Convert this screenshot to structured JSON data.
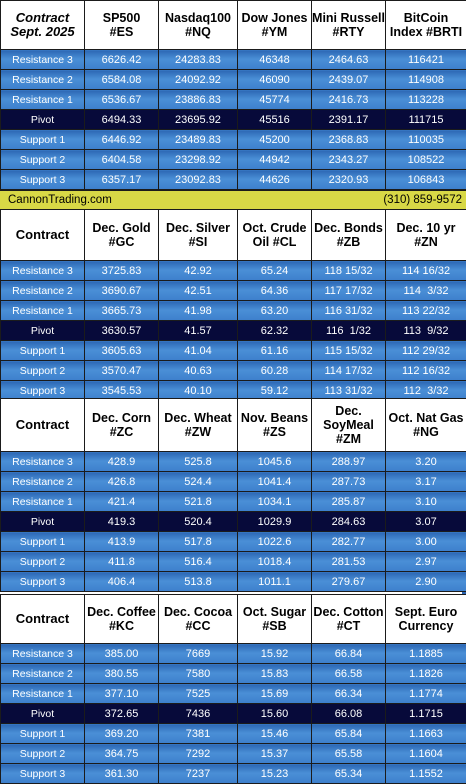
{
  "banner": {
    "site": "CannonTrading.com",
    "phone": "(310) 859-9572"
  },
  "row_labels": [
    "Resistance 3",
    "Resistance 2",
    "Resistance 1",
    "Pivot",
    "Support 1",
    "Support 2",
    "Support 3"
  ],
  "sections": [
    {
      "header": [
        "Contract\nSept. 2025",
        "SP500\n#ES",
        "Nasdaq100\n#NQ",
        "Dow Jones\n#YM",
        "Mini Russell\n#RTY",
        "BitCoin\nIndex #BRTI"
      ],
      "rows": [
        [
          "6626.42",
          "24283.83",
          "46348",
          "2464.63",
          "116421"
        ],
        [
          "6584.08",
          "24092.92",
          "46090",
          "2439.07",
          "114908"
        ],
        [
          "6536.67",
          "23886.83",
          "45774",
          "2416.73",
          "113228"
        ],
        [
          "6494.33",
          "23695.92",
          "45516",
          "2391.17",
          "111715"
        ],
        [
          "6446.92",
          "23489.83",
          "45200",
          "2368.83",
          "110035"
        ],
        [
          "6404.58",
          "23298.92",
          "44942",
          "2343.27",
          "108522"
        ],
        [
          "6357.17",
          "23092.83",
          "44626",
          "2320.93",
          "106843"
        ]
      ]
    },
    {
      "header": [
        "Contract",
        "Dec. Gold\n#GC",
        "Dec. Silver\n#SI",
        "Oct. Crude\nOil #CL",
        "Dec. Bonds\n#ZB",
        "Dec. 10 yr\n#ZN"
      ],
      "rows": [
        [
          "3725.83",
          "42.92",
          "65.24",
          "118 15/32",
          "114 16/32"
        ],
        [
          "3690.67",
          "42.51",
          "64.36",
          "117 17/32",
          "114  3/32"
        ],
        [
          "3665.73",
          "41.98",
          "63.20",
          "116 31/32",
          "113 22/32"
        ],
        [
          "3630.57",
          "41.57",
          "62.32",
          "116  1/32",
          "113  9/32"
        ],
        [
          "3605.63",
          "41.04",
          "61.16",
          "115 15/32",
          "112 29/32"
        ],
        [
          "3570.47",
          "40.63",
          "60.28",
          "114 17/32",
          "112 16/32"
        ],
        [
          "3545.53",
          "40.10",
          "59.12",
          "113 31/32",
          "112  3/32"
        ]
      ]
    },
    {
      "header": [
        "Contract",
        "Dec. Corn\n#ZC",
        "Dec.  Wheat\n#ZW",
        "Nov. Beans\n#ZS",
        "Dec.\nSoyMeal\n#ZM",
        "Oct. Nat Gas\n#NG"
      ],
      "rows": [
        [
          "428.9",
          "525.8",
          "1045.6",
          "288.97",
          "3.20"
        ],
        [
          "426.8",
          "524.4",
          "1041.4",
          "287.73",
          "3.17"
        ],
        [
          "421.4",
          "521.8",
          "1034.1",
          "285.87",
          "3.10"
        ],
        [
          "419.3",
          "520.4",
          "1029.9",
          "284.63",
          "3.07"
        ],
        [
          "413.9",
          "517.8",
          "1022.6",
          "282.77",
          "3.00"
        ],
        [
          "411.8",
          "516.4",
          "1018.4",
          "281.53",
          "2.97"
        ],
        [
          "406.4",
          "513.8",
          "1011.1",
          "279.67",
          "2.90"
        ]
      ]
    },
    {
      "header": [
        "Contract",
        "Dec. Coffee\n#KC",
        "Dec. Cocoa\n#CC",
        "Oct. Sugar\n#SB",
        "Dec. Cotton\n#CT",
        "Sept. Euro\nCurrency"
      ],
      "rows": [
        [
          "385.00",
          "7669",
          "15.92",
          "66.84",
          "1.1885"
        ],
        [
          "380.55",
          "7580",
          "15.83",
          "66.58",
          "1.1826"
        ],
        [
          "377.10",
          "7525",
          "15.69",
          "66.34",
          "1.1774"
        ],
        [
          "372.65",
          "7436",
          "15.60",
          "66.08",
          "1.1715"
        ],
        [
          "369.20",
          "7381",
          "15.46",
          "65.84",
          "1.1663"
        ],
        [
          "364.75",
          "7292",
          "15.37",
          "65.58",
          "1.1604"
        ],
        [
          "361.30",
          "7237",
          "15.23",
          "65.34",
          "1.1552"
        ]
      ]
    }
  ]
}
